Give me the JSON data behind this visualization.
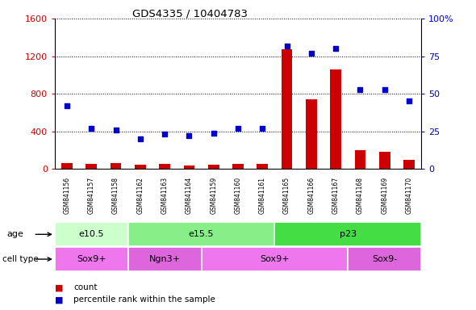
{
  "title": "GDS4335 / 10404783",
  "samples": [
    "GSM841156",
    "GSM841157",
    "GSM841158",
    "GSM841162",
    "GSM841163",
    "GSM841164",
    "GSM841159",
    "GSM841160",
    "GSM841161",
    "GSM841165",
    "GSM841166",
    "GSM841167",
    "GSM841168",
    "GSM841169",
    "GSM841170"
  ],
  "counts": [
    60,
    55,
    65,
    45,
    50,
    40,
    45,
    50,
    55,
    1270,
    740,
    1060,
    200,
    180,
    100
  ],
  "percentile_ranks": [
    42,
    27,
    26,
    20,
    23,
    22,
    24,
    27,
    27,
    82,
    77,
    80,
    53,
    53,
    45
  ],
  "count_color": "#cc0000",
  "percentile_color": "#0000cc",
  "ylim_left": [
    0,
    1600
  ],
  "ylim_right": [
    0,
    100
  ],
  "yticks_left": [
    0,
    400,
    800,
    1200,
    1600
  ],
  "ytick_labels_left": [
    "0",
    "400",
    "800",
    "1200",
    "1600"
  ],
  "yticks_right": [
    0,
    25,
    50,
    75,
    100
  ],
  "ytick_labels_right": [
    "0",
    "25",
    "50",
    "75",
    "100%"
  ],
  "age_groups": [
    {
      "label": "e10.5",
      "start": 0,
      "end": 3,
      "color": "#ccffcc"
    },
    {
      "label": "e15.5",
      "start": 3,
      "end": 9,
      "color": "#88ee88"
    },
    {
      "label": "p23",
      "start": 9,
      "end": 15,
      "color": "#44dd44"
    }
  ],
  "cell_type_groups": [
    {
      "label": "Sox9+",
      "start": 0,
      "end": 3,
      "color": "#ee77ee"
    },
    {
      "label": "Ngn3+",
      "start": 3,
      "end": 6,
      "color": "#dd66dd"
    },
    {
      "label": "Sox9+",
      "start": 6,
      "end": 12,
      "color": "#ee77ee"
    },
    {
      "label": "Sox9-",
      "start": 12,
      "end": 15,
      "color": "#dd66dd"
    }
  ],
  "age_row_label": "age",
  "cell_type_row_label": "cell type",
  "legend_count_label": "count",
  "legend_percentile_label": "percentile rank within the sample",
  "bg_color": "#ffffff",
  "tick_label_color_left": "#cc0000",
  "tick_label_color_right": "#0000cc",
  "sample_band_color": "#cccccc",
  "sample_divider_color": "#aaaaaa"
}
